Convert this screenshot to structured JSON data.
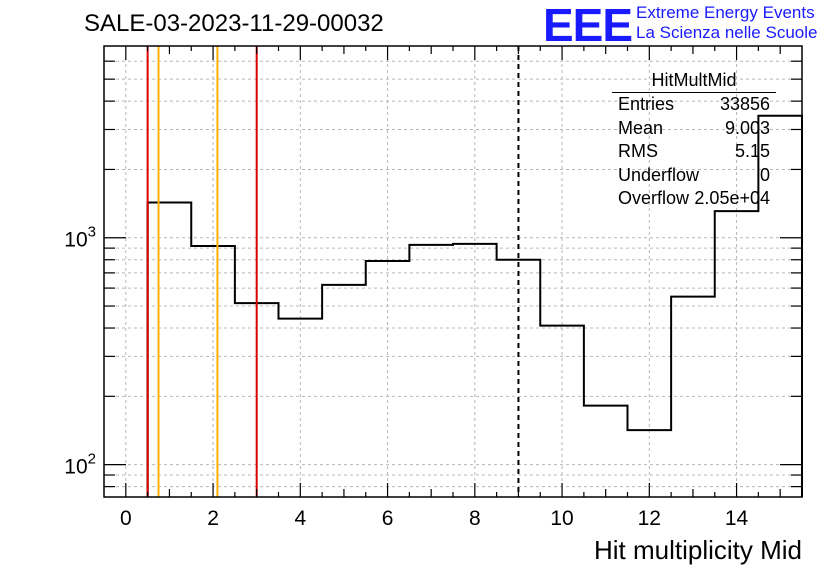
{
  "title": "SALE-03-2023-11-29-00032",
  "logo": {
    "mark": "EEE",
    "line1": "Extreme Energy Events",
    "line2": "La Scienza nelle Scuole",
    "color": "#1a1aff"
  },
  "stats": {
    "name": "HitMultMid",
    "rows": [
      {
        "key": "Entries",
        "value": "33856"
      },
      {
        "key": "Mean",
        "value": "9.003"
      },
      {
        "key": "RMS",
        "value": "5.15"
      },
      {
        "key": "Underflow",
        "value": "0"
      },
      {
        "key": "Overflow",
        "value": "2.05e+04"
      }
    ]
  },
  "chart_data": {
    "type": "bar",
    "title": "SALE-03-2023-11-29-00032",
    "xlabel": "Hit multiplicity Mid",
    "ylabel": "",
    "yscale": "log",
    "xlim": [
      -0.5,
      15.5
    ],
    "ylim": [
      72,
      7000
    ],
    "grid": true,
    "xticks": [
      "0",
      "2",
      "4",
      "6",
      "8",
      "10",
      "12",
      "14"
    ],
    "yticks": [
      "10^2",
      "10^3"
    ],
    "bin_edges": [
      -0.5,
      0.5,
      1.5,
      2.5,
      3.5,
      4.5,
      5.5,
      6.5,
      7.5,
      8.5,
      9.5,
      10.5,
      11.5,
      12.5,
      13.5,
      14.5,
      15.5
    ],
    "values": [
      0,
      1430,
      920,
      515,
      440,
      620,
      790,
      930,
      940,
      800,
      410,
      182,
      142,
      550,
      1310,
      3450
    ],
    "vertical_lines": [
      {
        "x": 0.5,
        "color": "#dd0000",
        "style": "solid"
      },
      {
        "x": 0.75,
        "color": "#ffb000",
        "style": "solid"
      },
      {
        "x": 2.1,
        "color": "#ffb000",
        "style": "solid"
      },
      {
        "x": 3.0,
        "color": "#dd0000",
        "style": "solid"
      },
      {
        "x": 9.0,
        "color": "#000000",
        "style": "dashed"
      }
    ]
  }
}
